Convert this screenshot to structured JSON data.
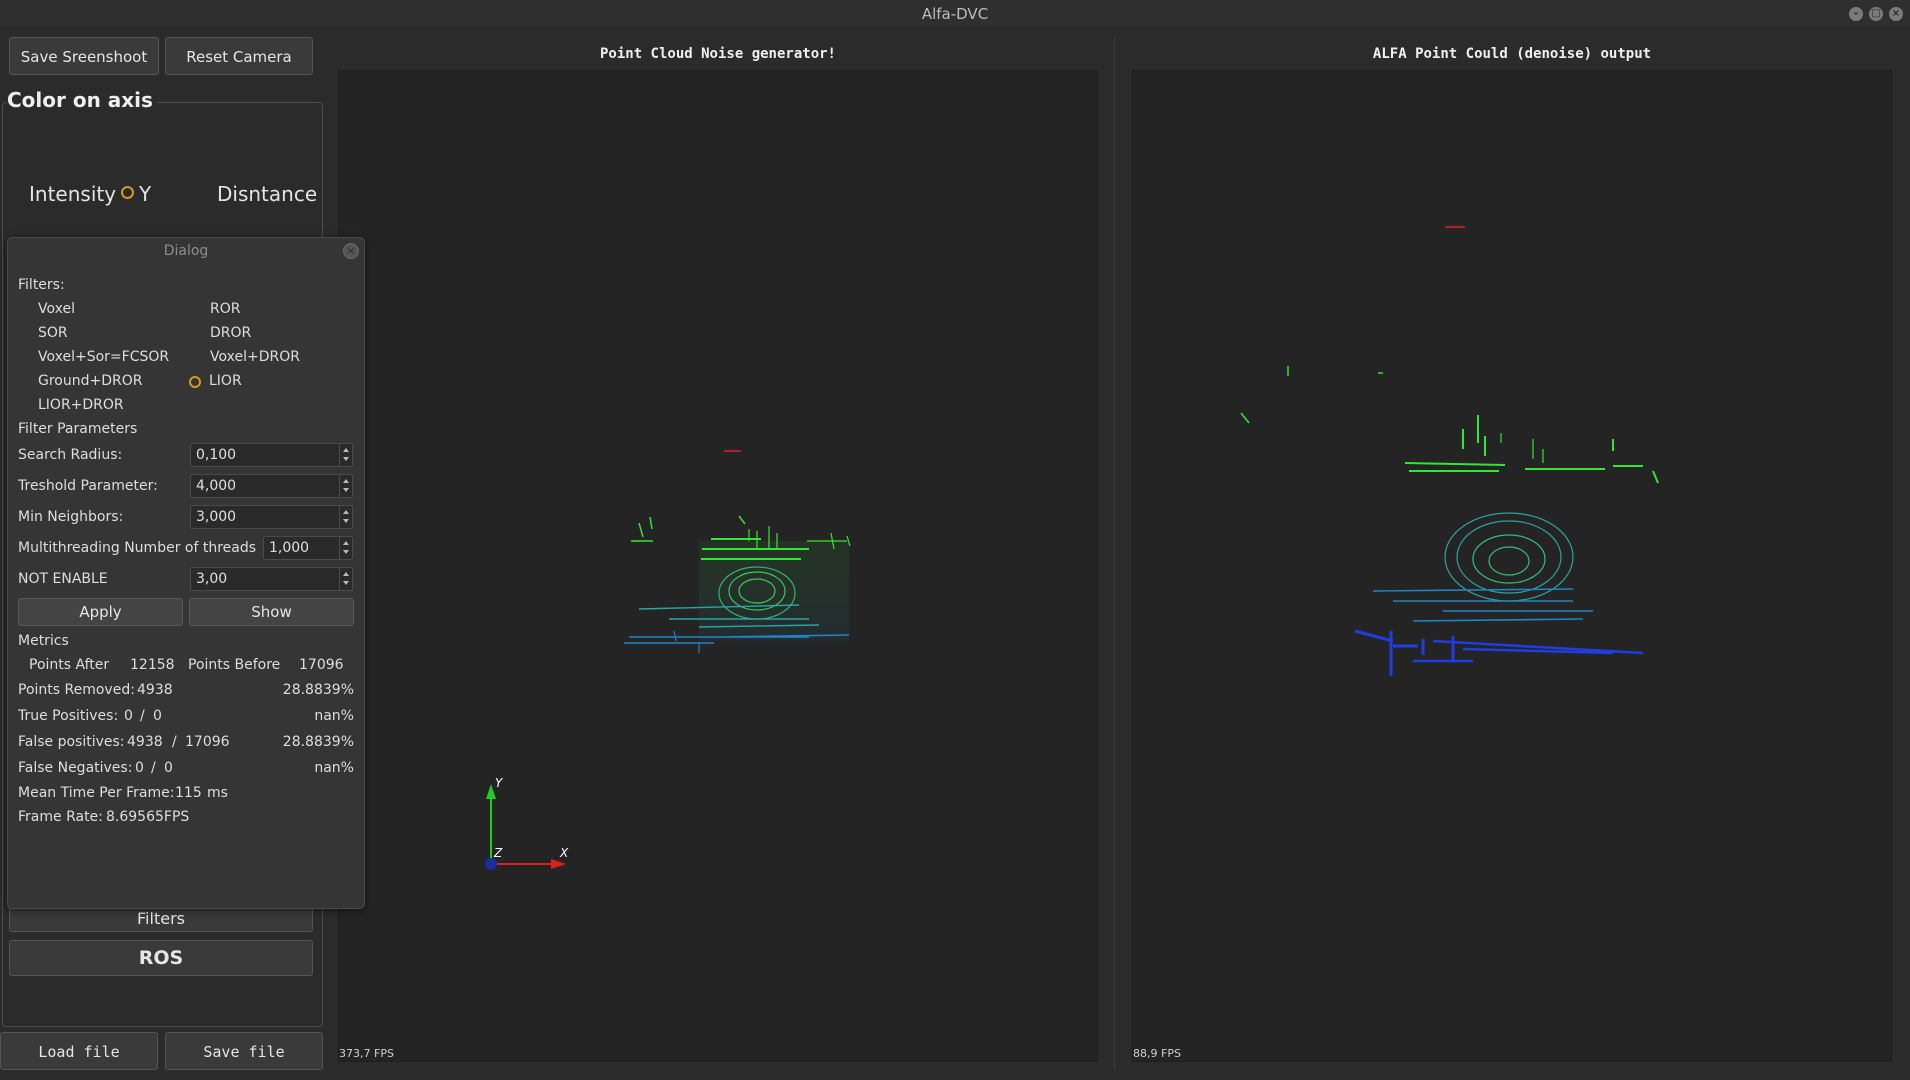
{
  "window": {
    "title": "Alfa-DVC"
  },
  "toolbar": {
    "save_screenshot": "Save Sreenshoot",
    "reset_camera": "Reset Camera"
  },
  "color_axis": {
    "title": "Color on axis",
    "intensity": "Intensity",
    "y": "Y",
    "distance": "Disntance"
  },
  "dialog": {
    "title": "Dialog",
    "filters_label": "Filters:",
    "filters": [
      "Voxel",
      "ROR",
      "SOR",
      "DROR",
      "Voxel+Sor=FCSOR",
      "Voxel+DROR",
      "Ground+DROR",
      "LIOR",
      "LIOR+DROR"
    ],
    "selected_filter": "LIOR",
    "params_label": "Filter Parameters",
    "params": [
      {
        "label": "Search Radius:",
        "value": "0,100"
      },
      {
        "label": "Treshold Parameter:",
        "value": "4,000"
      },
      {
        "label": "Min Neighbors:",
        "value": "3,000"
      },
      {
        "label": "Multithreading Number of threads",
        "value": "1,000"
      },
      {
        "label": "NOT ENABLE",
        "value": "3,00"
      }
    ],
    "apply": "Apply",
    "show": "Show",
    "metrics_label": "Metrics",
    "points_after_label": "Points After",
    "points_after": "12158",
    "points_before_label": "Points Before",
    "points_before": "17096",
    "points_removed_label": "Points Removed:",
    "points_removed": "4938",
    "points_removed_pct": "28.8839%",
    "tp_label": "True Positives:",
    "tp_a": "0",
    "tp_b": "0",
    "tp_pct": "nan%",
    "fp_label": "False positives:",
    "fp_a": "4938",
    "fp_b": "17096",
    "fp_pct": "28.8839%",
    "fn_label": "False Negatives:",
    "fn_a": "0",
    "fn_b": "0",
    "fn_pct": "nan%",
    "slash": "/",
    "mean_time_label": "Mean Time Per Frame:",
    "mean_time": "115",
    "mean_time_unit": "ms",
    "frame_rate_label": "Frame Rate:",
    "frame_rate": "8.69565FPS"
  },
  "side_buttons": {
    "filters": "Filters",
    "ros": "ROS",
    "load": "Load file",
    "save": "Save file"
  },
  "left_view": {
    "title": "Point Cloud Noise generator!",
    "fps": "373,7 FPS",
    "axis_y": "Y",
    "axis_z": "Z",
    "axis_x": "X"
  },
  "right_view": {
    "title": "ALFA Point Could (denoise) output",
    "fps": "88,9 FPS"
  },
  "colors": {
    "accent": "#d39b1f",
    "points_high": "#33e633",
    "points_mid": "#1e9aa8",
    "points_low": "#1f3de0",
    "points_top": "#e02020"
  }
}
